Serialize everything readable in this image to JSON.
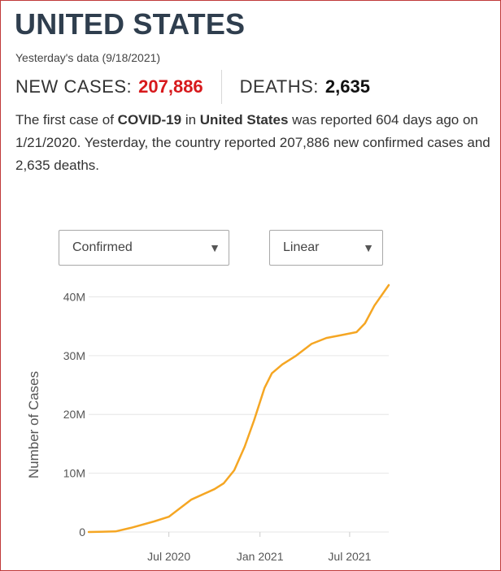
{
  "header": {
    "country": "UNITED STATES",
    "date_line": "Yesterday's data (9/18/2021)"
  },
  "stats": {
    "new_cases_label": "NEW CASES:",
    "new_cases_value": "207,886",
    "deaths_label": "DEATHS:",
    "deaths_value": "2,635"
  },
  "summary": {
    "p1": "The first case of ",
    "covid": "COVID-19",
    "p2": " in ",
    "country": "United States",
    "p3": " was reported 604 days ago on 1/21/2020. Yesterday, the country reported 207,886 new confirmed cases and 2,635 deaths."
  },
  "controls": {
    "metric_selected": "Confirmed",
    "scale_selected": "Linear",
    "arrow_glyph": "▼"
  },
  "colors": {
    "accent_red": "#d7191c",
    "line": "#f5a623",
    "grid": "#e6e6e6"
  },
  "chart_data": {
    "type": "line",
    "title": "",
    "xlabel": "",
    "ylabel": "Number of Cases",
    "ylim": [
      0,
      42000000
    ],
    "y_ticks": [
      {
        "value": 0,
        "label": "0"
      },
      {
        "value": 10000000,
        "label": "10M"
      },
      {
        "value": 20000000,
        "label": "20M"
      },
      {
        "value": 30000000,
        "label": "30M"
      },
      {
        "value": 40000000,
        "label": "40M"
      }
    ],
    "x_range": [
      "2020-01-21",
      "2021-09-18"
    ],
    "x_ticks": [
      {
        "date": "2020-07-01",
        "label": "Jul 2020"
      },
      {
        "date": "2021-01-01",
        "label": "Jan 2021"
      },
      {
        "date": "2021-07-01",
        "label": "Jul 2021"
      }
    ],
    "grid": true,
    "series": [
      {
        "name": "",
        "points": [
          {
            "date": "2020-01-21",
            "value": 0
          },
          {
            "date": "2020-03-15",
            "value": 100000
          },
          {
            "date": "2020-04-15",
            "value": 700000
          },
          {
            "date": "2020-06-01",
            "value": 1800000
          },
          {
            "date": "2020-07-01",
            "value": 2600000
          },
          {
            "date": "2020-08-15",
            "value": 5500000
          },
          {
            "date": "2020-10-01",
            "value": 7300000
          },
          {
            "date": "2020-10-20",
            "value": 8300000
          },
          {
            "date": "2020-11-10",
            "value": 10500000
          },
          {
            "date": "2020-12-01",
            "value": 14500000
          },
          {
            "date": "2020-12-20",
            "value": 19000000
          },
          {
            "date": "2021-01-10",
            "value": 24500000
          },
          {
            "date": "2021-01-25",
            "value": 27000000
          },
          {
            "date": "2021-02-15",
            "value": 28500000
          },
          {
            "date": "2021-03-15",
            "value": 30000000
          },
          {
            "date": "2021-04-15",
            "value": 32000000
          },
          {
            "date": "2021-05-15",
            "value": 33000000
          },
          {
            "date": "2021-06-15",
            "value": 33500000
          },
          {
            "date": "2021-07-15",
            "value": 34000000
          },
          {
            "date": "2021-08-01",
            "value": 35500000
          },
          {
            "date": "2021-08-20",
            "value": 38500000
          },
          {
            "date": "2021-09-18",
            "value": 42000000
          }
        ]
      }
    ]
  }
}
